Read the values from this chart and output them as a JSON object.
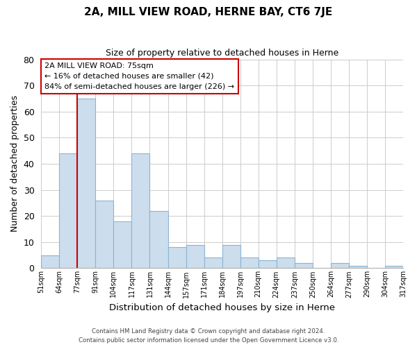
{
  "title": "2A, MILL VIEW ROAD, HERNE BAY, CT6 7JE",
  "subtitle": "Size of property relative to detached houses in Herne",
  "xlabel": "Distribution of detached houses by size in Herne",
  "ylabel": "Number of detached properties",
  "bar_color": "#ccdded",
  "bar_edge_color": "#8ab4d4",
  "background_color": "#ffffff",
  "grid_color": "#cccccc",
  "bin_labels": [
    "51sqm",
    "64sqm",
    "77sqm",
    "91sqm",
    "104sqm",
    "117sqm",
    "131sqm",
    "144sqm",
    "157sqm",
    "171sqm",
    "184sqm",
    "197sqm",
    "210sqm",
    "224sqm",
    "237sqm",
    "250sqm",
    "264sqm",
    "277sqm",
    "290sqm",
    "304sqm",
    "317sqm"
  ],
  "bar_values": [
    5,
    44,
    65,
    26,
    18,
    44,
    22,
    8,
    9,
    4,
    9,
    4,
    3,
    4,
    2,
    0,
    2,
    1,
    0,
    1
  ],
  "ylim": [
    0,
    80
  ],
  "yticks": [
    0,
    10,
    20,
    30,
    40,
    50,
    60,
    70,
    80
  ],
  "property_line_x": 2,
  "property_line_label": "2A MILL VIEW ROAD: 75sqm",
  "annotation_line1": "← 16% of detached houses are smaller (42)",
  "annotation_line2": "84% of semi-detached houses are larger (226) →",
  "vline_color": "#cc0000",
  "annotation_box_edge": "#cc0000",
  "footer_line1": "Contains HM Land Registry data © Crown copyright and database right 2024.",
  "footer_line2": "Contains public sector information licensed under the Open Government Licence v3.0."
}
